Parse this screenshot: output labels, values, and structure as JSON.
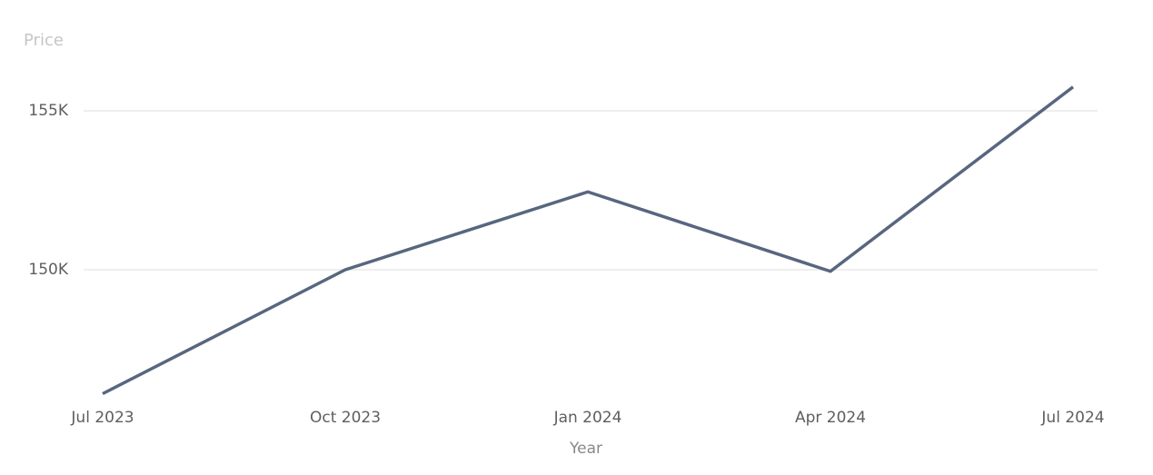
{
  "chart_data": {
    "type": "line",
    "y_label": "Price",
    "x_label": "Year",
    "categories": [
      "Jul 2023",
      "Oct 2023",
      "Jan 2024",
      "Apr 2024",
      "Jul 2024"
    ],
    "series": [
      {
        "name": "Price",
        "color": "#58667f",
        "values": [
          146100,
          150000,
          152450,
          149950,
          155750
        ]
      }
    ],
    "ylim": [
      146000,
      156500
    ],
    "yticks": [
      {
        "value": 150000,
        "label": "150K"
      },
      {
        "value": 155000,
        "label": "155K"
      }
    ],
    "grid": true
  }
}
